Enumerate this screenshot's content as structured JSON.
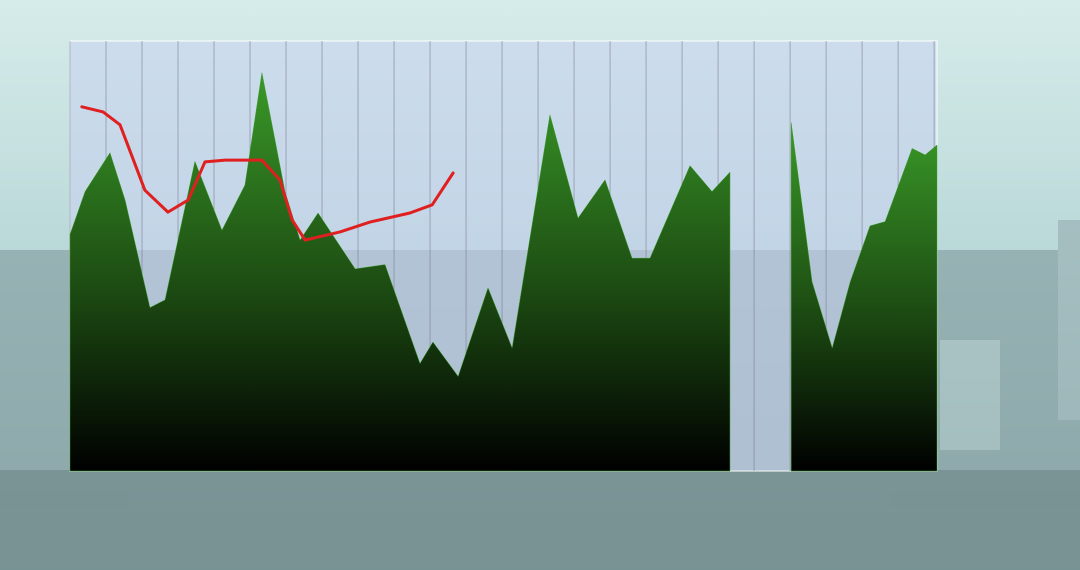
{
  "chart_data": {
    "type": "area",
    "xlim": [
      0,
      24.08
    ],
    "ylim": [
      0,
      100
    ],
    "grid": true,
    "xticks": [
      0,
      1,
      2,
      3,
      4,
      5,
      6,
      7,
      8,
      9,
      10,
      11,
      12,
      13,
      14,
      15,
      16,
      17,
      18,
      19,
      20,
      21,
      22,
      23,
      24
    ],
    "series": [
      {
        "color": "#3a9a28",
        "x": [
          0,
          0.42,
          1.11,
          1.53,
          2.22,
          2.64,
          3.47,
          4.22,
          4.86,
          5.33,
          5.97,
          6.39,
          6.89,
          7.92,
          8.75,
          9.72,
          10.08,
          10.78,
          11.61,
          12.28,
          13.33,
          14.11,
          14.86,
          15.61,
          16.11,
          17.22,
          17.83,
          18.33,
          18.9,
          20.03,
          20.61,
          21.17,
          21.67,
          22.22,
          22.64,
          23.39,
          23.75,
          24.08
        ],
        "values": [
          55,
          65,
          74,
          63,
          38,
          39.8,
          72,
          56,
          66.5,
          92.6,
          65,
          53.7,
          60,
          47,
          48,
          25,
          30,
          22,
          42.6,
          28.6,
          82.8,
          58.8,
          67.7,
          49.5,
          49.5,
          71,
          65,
          69.5,
          null,
          81,
          44,
          28.6,
          44,
          57,
          58,
          75,
          73.5,
          75.8
        ]
      },
      {
        "color": "#e02020",
        "line": true,
        "x": [
          0.33,
          0.92,
          1.39,
          2.08,
          2.72,
          3.28,
          3.75,
          4.31,
          5.33,
          5.83,
          6.17,
          6.53,
          7.5,
          8.33,
          9.44,
          10.06,
          10.64
        ],
        "values": [
          84.7,
          83.5,
          80.5,
          65.3,
          60.2,
          63,
          71.9,
          72.3,
          72.3,
          67.7,
          58.4,
          53.7,
          55.6,
          57.9,
          60,
          61.9,
          69.3
        ]
      }
    ]
  }
}
